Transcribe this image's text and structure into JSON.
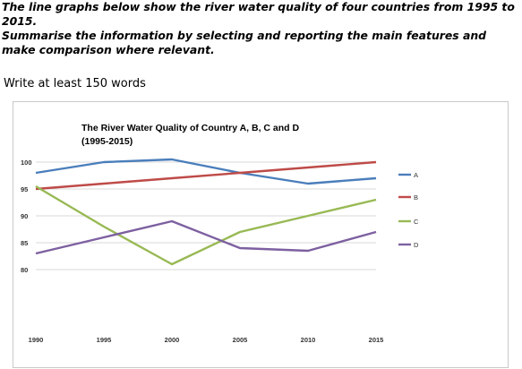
{
  "prompt": {
    "line1": "The line graphs below show the river water quality of four countries from 1995 to",
    "line2": "2015.",
    "line3": "Summarise the information by selecting and reporting the main features and",
    "line4": "make comparison where relevant."
  },
  "instruction": "Write at least 150 words",
  "chart_data": {
    "type": "line",
    "title_line1": "The River Water Quality of Country A, B, C and D",
    "title_line2": "(1995-2015)",
    "x": [
      1990,
      1995,
      2000,
      2005,
      2010,
      2015
    ],
    "x_ticks": [
      "1990",
      "1995",
      "2000",
      "2005",
      "2010",
      "2015"
    ],
    "y_ticks": [
      "100",
      "95",
      "90",
      "85",
      "80"
    ],
    "ylim": [
      80,
      100
    ],
    "grid": "horizontal",
    "legend_position": "right",
    "series": [
      {
        "name": "A",
        "color": "#4a7ebb",
        "values": [
          98,
          100,
          100.5,
          98,
          96,
          97
        ]
      },
      {
        "name": "B",
        "color": "#be4b48",
        "values": [
          95,
          96,
          97,
          98,
          99,
          100
        ]
      },
      {
        "name": "C",
        "color": "#98b954",
        "values": [
          95.5,
          88,
          81,
          87,
          90,
          93
        ]
      },
      {
        "name": "D",
        "color": "#7d60a0",
        "values": [
          83,
          86,
          89,
          84,
          83.5,
          87
        ]
      }
    ]
  }
}
